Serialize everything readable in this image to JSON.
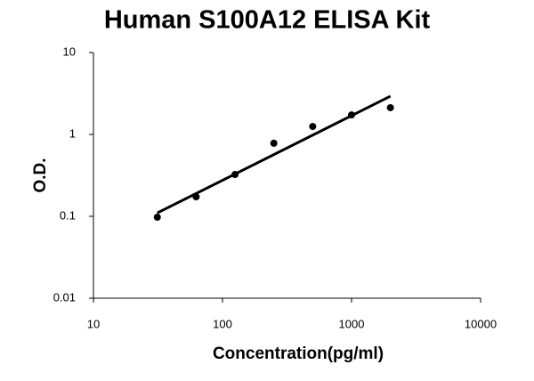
{
  "chart_data": {
    "type": "scatter",
    "title": "Human S100A12 ELISA Kit",
    "x_label": "Concentration(pg/ml)",
    "y_label": "O.D.",
    "x": [
      31.25,
      62.5,
      125,
      250,
      500,
      1000,
      2000
    ],
    "values": [
      0.0975,
      0.173,
      0.324,
      0.78,
      1.25,
      1.73,
      2.12
    ],
    "color": "#000000",
    "trendline": {
      "x": [
        31.25,
        2000
      ],
      "values": [
        0.11,
        2.93
      ]
    },
    "x_log": true,
    "y_log": true,
    "xlim": [
      10,
      10000
    ],
    "ylim": [
      0.01,
      10
    ],
    "xticks": [
      10,
      100,
      1000,
      10000
    ],
    "yticks": [
      0.01,
      0.1,
      1,
      10
    ]
  }
}
